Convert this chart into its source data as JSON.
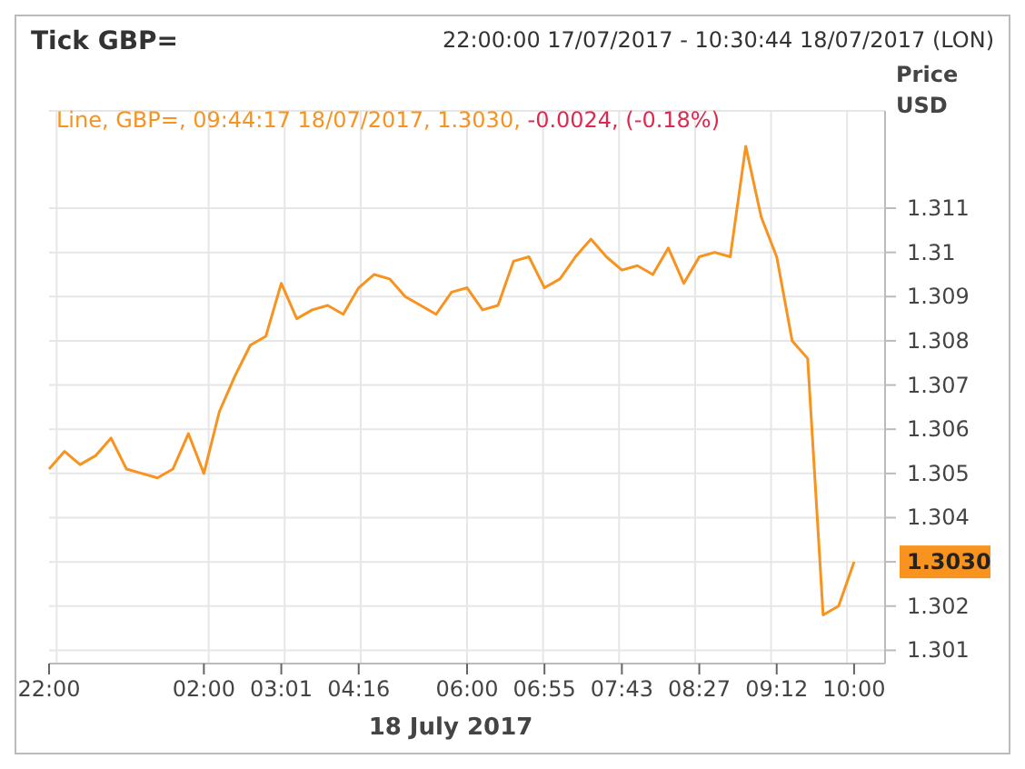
{
  "chart_data": {
    "type": "line",
    "title": "Tick GBP=",
    "subtitle": "22:00:00 17/07/2017 - 10:30:44 18/07/2017 (LON)",
    "xlabel": "18 July 2017",
    "ylabel": "Price USD",
    "categories": [
      "22:00",
      null,
      null,
      null,
      null,
      null,
      null,
      null,
      null,
      null,
      "02:00",
      null,
      null,
      null,
      null,
      "03:01",
      null,
      null,
      null,
      null,
      "04:16",
      null,
      null,
      null,
      null,
      null,
      null,
      "06:00",
      null,
      null,
      null,
      null,
      "06:55",
      null,
      null,
      null,
      null,
      "07:43",
      null,
      null,
      null,
      null,
      "08:27",
      null,
      null,
      null,
      null,
      "09:12",
      null,
      null,
      null,
      null,
      "10:00",
      null,
      null
    ],
    "series": [
      {
        "name": "Line, GBP=, 09:44:17 18/07/2017, 1.3030,",
        "color": "#f7931e",
        "values": [
          1.3051,
          1.3055,
          1.3052,
          1.3054,
          1.3058,
          1.3051,
          1.305,
          1.3049,
          1.3051,
          1.3059,
          1.305,
          1.3064,
          1.3072,
          1.3079,
          1.3081,
          1.3093,
          1.3085,
          1.3087,
          1.3088,
          1.3086,
          1.3092,
          1.3095,
          1.3094,
          1.309,
          1.3088,
          1.3086,
          1.3091,
          1.3092,
          1.3087,
          1.3088,
          1.3098,
          1.3099,
          1.3092,
          1.3094,
          1.3099,
          1.3103,
          1.3099,
          1.3096,
          1.3097,
          1.3095,
          1.3101,
          1.3093,
          1.3099,
          1.31,
          1.3099,
          1.3124,
          1.3108,
          1.3099,
          1.308,
          1.3076,
          1.3018,
          1.302,
          1.303,
          null,
          null
        ]
      }
    ],
    "ylim": [
      1.3007,
      1.3132
    ],
    "yticks": [
      1.301,
      1.302,
      {
        "value": 1.303,
        "label": "1.3030"
      },
      1.304,
      1.305,
      1.306,
      1.307,
      1.308,
      1.309,
      1.31,
      1.311
    ],
    "grid": true,
    "legend": "top left",
    "marker": "none",
    "line_style": "solid",
    "annotations": [
      "-0.0024, (-0.18%)"
    ]
  }
}
